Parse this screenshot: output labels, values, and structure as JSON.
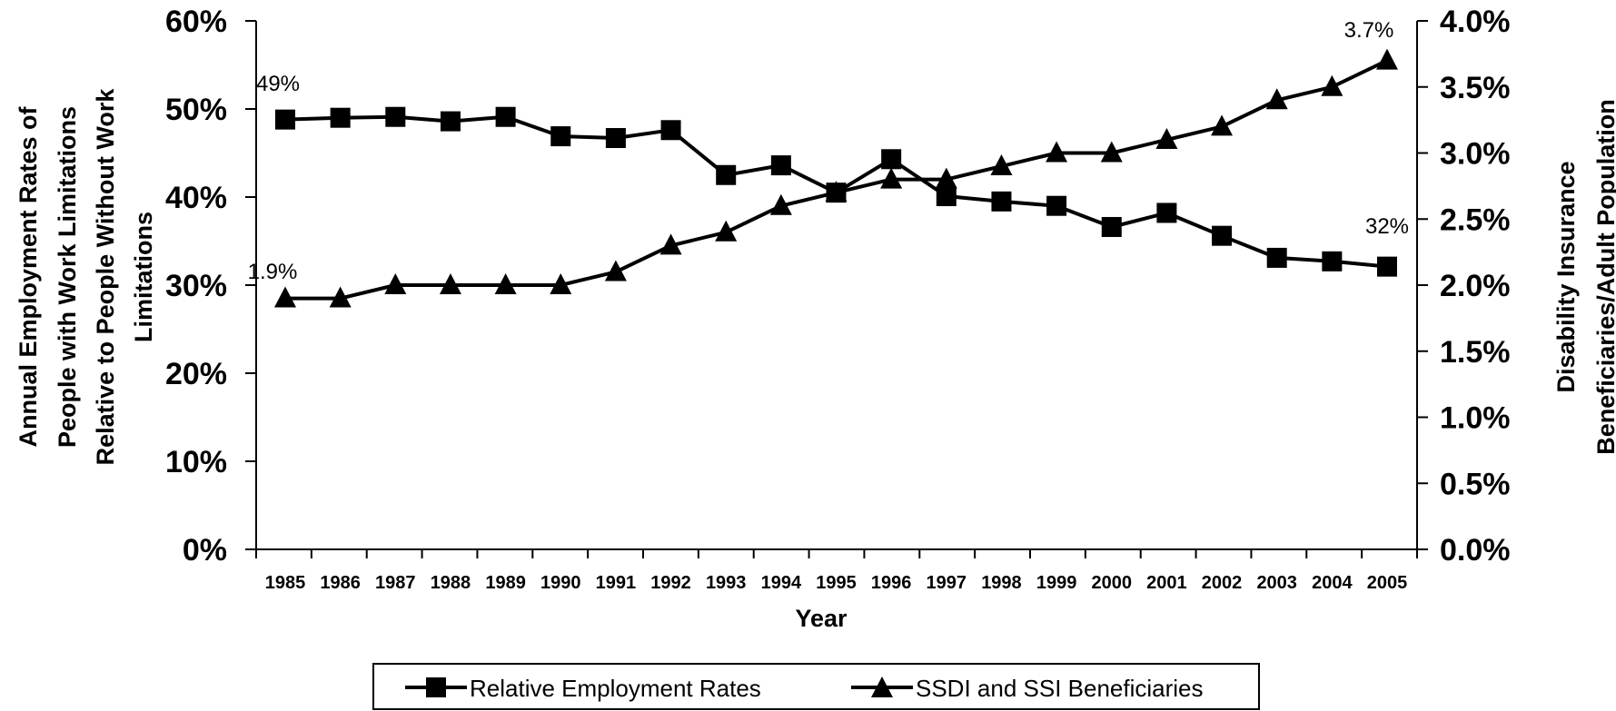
{
  "chart_data": {
    "type": "line",
    "x": [
      "1985",
      "1986",
      "1987",
      "1988",
      "1989",
      "1990",
      "1991",
      "1992",
      "1993",
      "1994",
      "1995",
      "1996",
      "1997",
      "1998",
      "1999",
      "2000",
      "2001",
      "2002",
      "2003",
      "2004",
      "2005"
    ],
    "xlabel": "Year",
    "ylabel_left_lines": [
      "Annual Employment Rates of",
      "People with Work Limitations",
      "Relative to People Without Work",
      "Limitations"
    ],
    "ylabel_right_lines": [
      "Disability Insurance",
      "Beneficiaries/Adult Population"
    ],
    "ylim_left": [
      0,
      60
    ],
    "ylim_right": [
      0,
      4.0
    ],
    "yticks_left": [
      "0%",
      "10%",
      "20%",
      "30%",
      "40%",
      "50%",
      "60%"
    ],
    "yticks_right": [
      "0.0%",
      "0.5%",
      "1.0%",
      "1.5%",
      "2.0%",
      "2.5%",
      "3.0%",
      "3.5%",
      "4.0%"
    ],
    "grid": false,
    "legend_position": "bottom",
    "series": [
      {
        "name": "Relative Employment Rates",
        "axis": "left",
        "marker": "square",
        "values": [
          48.8,
          49.0,
          49.1,
          48.6,
          49.1,
          46.9,
          46.7,
          47.6,
          42.5,
          43.6,
          40.5,
          44.3,
          40.1,
          39.5,
          39.0,
          36.6,
          38.2,
          35.6,
          33.1,
          32.7,
          32.1
        ]
      },
      {
        "name": "SSDI and SSI Beneficiaries",
        "axis": "right",
        "marker": "triangle",
        "values": [
          1.9,
          1.9,
          2.0,
          2.0,
          2.0,
          2.0,
          2.1,
          2.3,
          2.4,
          2.6,
          2.7,
          2.8,
          2.8,
          2.9,
          3.0,
          3.0,
          3.1,
          3.2,
          3.4,
          3.5,
          3.7
        ]
      }
    ],
    "annotations": {
      "emp_start": "49%",
      "emp_end": "32%",
      "ben_start": "1.9%",
      "ben_end": "3.7%"
    }
  }
}
